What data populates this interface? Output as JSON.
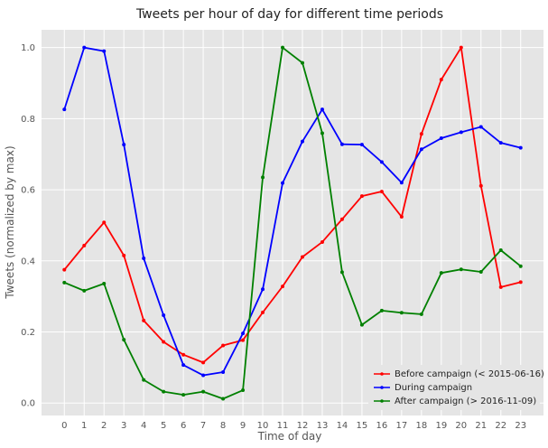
{
  "chart_data": {
    "type": "line",
    "title": "Tweets per hour of day for different time periods",
    "xlabel": "Time of day",
    "ylabel": "Tweets (normalized by max)",
    "x": [
      0,
      1,
      2,
      3,
      4,
      5,
      6,
      7,
      8,
      9,
      10,
      11,
      12,
      13,
      14,
      15,
      16,
      17,
      18,
      19,
      20,
      21,
      22,
      23
    ],
    "x_ticks": [
      "0",
      "1",
      "2",
      "3",
      "4",
      "5",
      "6",
      "7",
      "8",
      "9",
      "10",
      "11",
      "12",
      "13",
      "14",
      "15",
      "16",
      "17",
      "18",
      "19",
      "20",
      "21",
      "22",
      "23"
    ],
    "xlim": [
      -1.15,
      24.15
    ],
    "ylim": [
      -0.035,
      1.05
    ],
    "y_ticks": [
      "0.0",
      "0.2",
      "0.4",
      "0.6",
      "0.8",
      "1.0"
    ],
    "y_tick_values": [
      0,
      0.2,
      0.4,
      0.6,
      0.8,
      1.0
    ],
    "grid": true,
    "legend_position": "lower-right",
    "series": [
      {
        "name": "Before campaign (< 2015-06-16)",
        "color": "#ff0000",
        "values": [
          0.375,
          0.443,
          0.508,
          0.415,
          0.232,
          0.172,
          0.136,
          0.114,
          0.162,
          0.177,
          0.255,
          0.328,
          0.411,
          0.453,
          0.517,
          0.582,
          0.595,
          0.524,
          0.757,
          0.91,
          1.0,
          0.611,
          0.326,
          0.34
        ]
      },
      {
        "name": "During campaign",
        "color": "#0000ff",
        "values": [
          0.826,
          1.0,
          0.99,
          0.727,
          0.407,
          0.247,
          0.107,
          0.078,
          0.087,
          0.196,
          0.32,
          0.619,
          0.736,
          0.826,
          0.728,
          0.727,
          0.678,
          0.62,
          0.714,
          0.745,
          0.762,
          0.777,
          0.732,
          0.718
        ]
      },
      {
        "name": "After campaign (> 2016-11-09)",
        "color": "#008000",
        "values": [
          0.339,
          0.316,
          0.336,
          0.178,
          0.065,
          0.032,
          0.023,
          0.032,
          0.012,
          0.036,
          0.635,
          1.0,
          0.957,
          0.759,
          0.368,
          0.22,
          0.26,
          0.254,
          0.25,
          0.366,
          0.376,
          0.369,
          0.43,
          0.385
        ]
      }
    ]
  }
}
